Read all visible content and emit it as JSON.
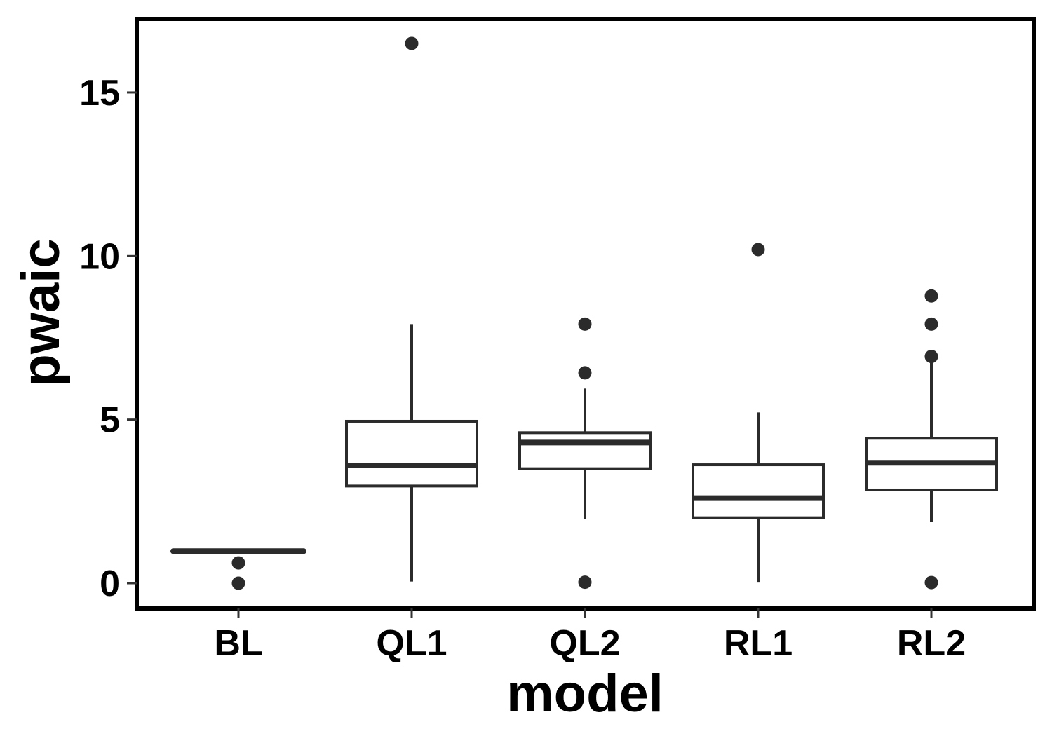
{
  "chart_data": {
    "type": "box",
    "xlabel": "model",
    "ylabel": "pwaic",
    "categories": [
      "BL",
      "QL1",
      "QL2",
      "RL1",
      "RL2"
    ],
    "yticks": [
      0,
      5,
      10,
      15
    ],
    "ytick_labels": [
      "0",
      "5",
      "10",
      "15"
    ],
    "ylim": [
      -0.75,
      17.25
    ],
    "grid": false,
    "legend": "none",
    "boxes": [
      {
        "category": "BL",
        "whisker_low": 0.98,
        "q1": 0.98,
        "median": 0.98,
        "q3": 0.98,
        "whisker_high": 0.98,
        "outliers": [
          0.62,
          0.0
        ]
      },
      {
        "category": "QL1",
        "whisker_low": 0.05,
        "q1": 2.97,
        "median": 3.6,
        "q3": 4.95,
        "whisker_high": 7.92,
        "outliers": [
          16.5
        ]
      },
      {
        "category": "QL2",
        "whisker_low": 1.95,
        "q1": 3.5,
        "median": 4.3,
        "q3": 4.6,
        "whisker_high": 5.95,
        "outliers": [
          7.92,
          6.43,
          0.03
        ]
      },
      {
        "category": "RL1",
        "whisker_low": 0.02,
        "q1": 2.0,
        "median": 2.6,
        "q3": 3.62,
        "whisker_high": 5.22,
        "outliers": [
          10.2
        ]
      },
      {
        "category": "RL2",
        "whisker_low": 1.88,
        "q1": 2.85,
        "median": 3.68,
        "q3": 4.43,
        "whisker_high": 6.8,
        "outliers": [
          8.78,
          7.92,
          6.93,
          0.02
        ]
      }
    ]
  },
  "colors": {
    "box_stroke": "#2b2b2b",
    "outlier_fill": "#2b2b2b",
    "panel_border": "#000000",
    "text": "#000000"
  }
}
